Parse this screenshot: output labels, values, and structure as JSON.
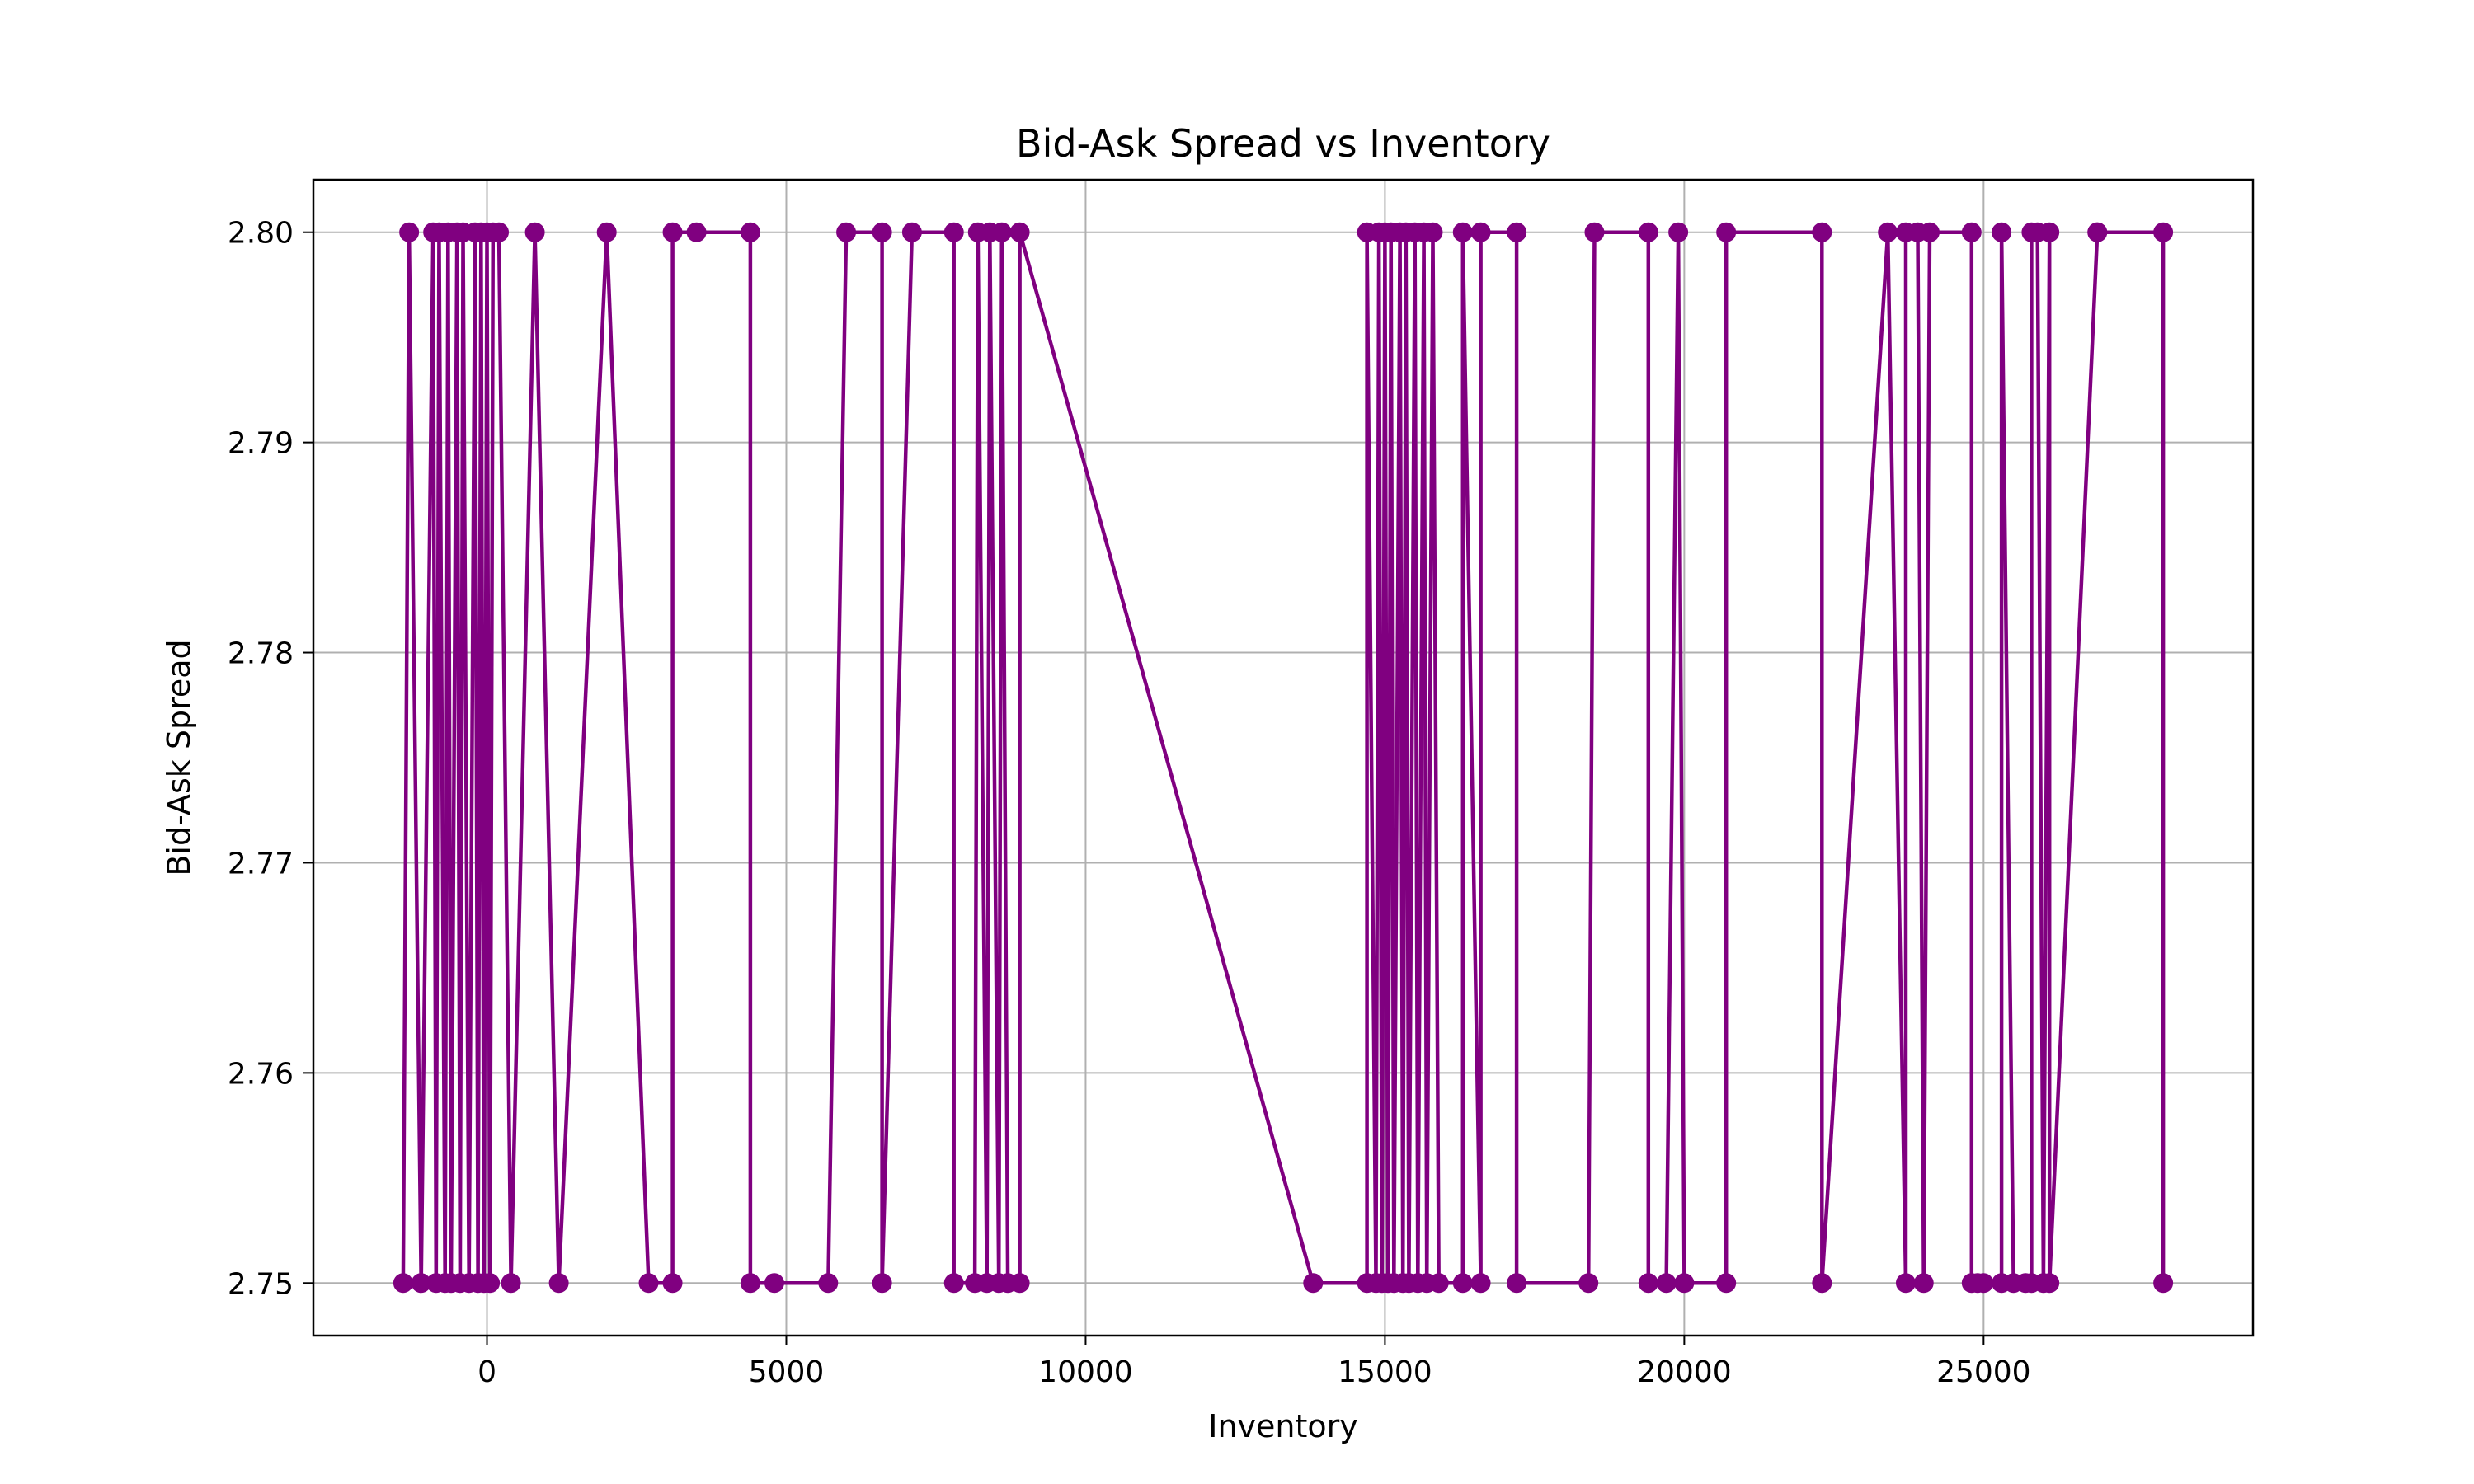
{
  "chart_data": {
    "type": "line",
    "title": "Bid-Ask Spread vs Inventory",
    "xlabel": "Inventory",
    "ylabel": "Bid-Ask Spread",
    "xlim": [
      -2900,
      29500
    ],
    "ylim": [
      2.7475,
      2.8025
    ],
    "xticks": [
      0,
      5000,
      10000,
      15000,
      20000,
      25000
    ],
    "xtick_labels": [
      "0",
      "5000",
      "10000",
      "15000",
      "20000",
      "25000"
    ],
    "yticks": [
      2.75,
      2.76,
      2.77,
      2.78,
      2.79,
      2.8
    ],
    "ytick_labels": [
      "2.75",
      "2.76",
      "2.77",
      "2.78",
      "2.79",
      "2.80"
    ],
    "grid": true,
    "legend": false,
    "color": "#800080",
    "marker": "circle",
    "series": [
      {
        "x": [
          -1400,
          -1300,
          -1100,
          -900,
          -850,
          -800,
          -700,
          -650,
          -600,
          -500,
          -450,
          -400,
          -300,
          -200,
          -150,
          -100,
          -50,
          0,
          50,
          100,
          200,
          400,
          800,
          1200,
          2000,
          2700,
          3100,
          3100,
          3500,
          4400,
          4400,
          4800,
          5700,
          6000,
          6600,
          6600,
          7100,
          7800,
          7800,
          8150,
          8200,
          8350,
          8400,
          8550,
          8600,
          8700,
          8900,
          8900,
          13800,
          14700,
          14700,
          14850,
          14900,
          14950,
          15000,
          15050,
          15100,
          15150,
          15250,
          15300,
          15350,
          15400,
          15500,
          15550,
          15650,
          15700,
          15800,
          15900,
          16300,
          16300,
          16600,
          16600,
          17200,
          17200,
          18400,
          18500,
          19400,
          19400,
          19700,
          19900,
          20000,
          20700,
          20700,
          22300,
          22300,
          23400,
          23700,
          23700,
          23900,
          24000,
          24100,
          24800,
          24800,
          24900,
          25000,
          25300,
          25300,
          25500,
          25700,
          25800,
          25800,
          25900,
          26000,
          26100,
          26100,
          26900,
          26900,
          28000,
          28000
        ],
        "y": [
          2.75,
          2.8,
          2.75,
          2.8,
          2.75,
          2.8,
          2.75,
          2.8,
          2.75,
          2.8,
          2.75,
          2.8,
          2.75,
          2.8,
          2.75,
          2.8,
          2.75,
          2.8,
          2.75,
          2.8,
          2.8,
          2.75,
          2.8,
          2.75,
          2.8,
          2.75,
          2.75,
          2.8,
          2.8,
          2.8,
          2.75,
          2.75,
          2.75,
          2.8,
          2.8,
          2.75,
          2.8,
          2.8,
          2.75,
          2.75,
          2.8,
          2.75,
          2.8,
          2.75,
          2.8,
          2.75,
          2.75,
          2.8,
          2.75,
          2.75,
          2.8,
          2.75,
          2.8,
          2.75,
          2.8,
          2.75,
          2.8,
          2.75,
          2.8,
          2.75,
          2.8,
          2.75,
          2.8,
          2.75,
          2.8,
          2.75,
          2.8,
          2.75,
          2.75,
          2.8,
          2.75,
          2.8,
          2.8,
          2.75,
          2.75,
          2.8,
          2.8,
          2.75,
          2.75,
          2.8,
          2.75,
          2.75,
          2.8,
          2.8,
          2.75,
          2.8,
          2.75,
          2.8,
          2.8,
          2.75,
          2.8,
          2.8,
          2.75,
          2.75,
          2.75,
          2.75,
          2.8,
          2.75,
          2.75,
          2.75,
          2.8,
          2.8,
          2.75,
          2.8,
          2.75,
          2.8,
          2.8,
          2.8,
          2.75
        ]
      }
    ]
  }
}
